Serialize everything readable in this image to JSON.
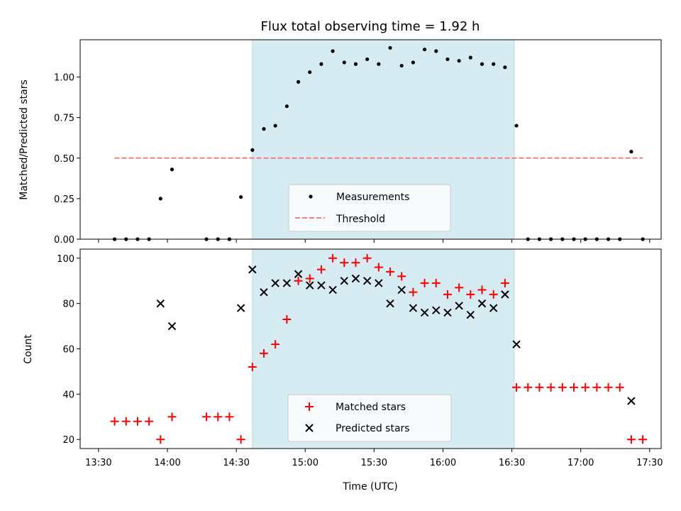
{
  "chart_data": [
    {
      "type": "scatter",
      "title": "Flux total observing time = 1.92 h",
      "xlabel": "",
      "ylabel": "Matched/Predicted stars",
      "ylim": [
        0,
        1.23
      ],
      "yticks": [
        "0.00",
        "0.25",
        "0.50",
        "0.75",
        "1.00"
      ],
      "ytick_values": [
        0,
        0.25,
        0.5,
        0.75,
        1.0
      ],
      "shaded_interval": [
        "14:37",
        "16:31"
      ],
      "shade_color": "#add8e6",
      "legend_position": "lower center",
      "series": [
        {
          "name": "Measurements",
          "marker": "dot",
          "color": "#000000",
          "x": [
            "13:37",
            "13:42",
            "13:47",
            "13:52",
            "13:57",
            "14:02",
            "14:17",
            "14:22",
            "14:27",
            "14:32",
            "14:37",
            "14:42",
            "14:47",
            "14:52",
            "14:57",
            "15:02",
            "15:07",
            "15:12",
            "15:17",
            "15:22",
            "15:27",
            "15:32",
            "15:37",
            "15:42",
            "15:47",
            "15:52",
            "15:57",
            "16:02",
            "16:07",
            "16:12",
            "16:17",
            "16:22",
            "16:27",
            "16:32",
            "16:37",
            "16:42",
            "16:47",
            "16:52",
            "16:57",
            "17:02",
            "17:07",
            "17:12",
            "17:17",
            "17:22",
            "17:27"
          ],
          "y": [
            0,
            0,
            0,
            0,
            0.25,
            0.43,
            0,
            0,
            0,
            0.26,
            0.55,
            0.68,
            0.7,
            0.82,
            0.97,
            1.03,
            1.08,
            1.16,
            1.09,
            1.08,
            1.11,
            1.08,
            1.18,
            1.07,
            1.09,
            1.17,
            1.16,
            1.11,
            1.1,
            1.12,
            1.08,
            1.08,
            1.06,
            0.7,
            0,
            0,
            0,
            0,
            0,
            0,
            0,
            0,
            0,
            0.54,
            0
          ]
        },
        {
          "name": "Threshold",
          "marker": "dashed-line",
          "color": "#f08080",
          "x": [
            "13:37",
            "17:27"
          ],
          "y": [
            0.5,
            0.5
          ]
        }
      ]
    },
    {
      "type": "scatter",
      "title": "",
      "xlabel": "Time (UTC)",
      "ylabel": "Count",
      "ylim": [
        16,
        104
      ],
      "yticks": [
        "20",
        "40",
        "60",
        "80",
        "100"
      ],
      "ytick_values": [
        20,
        40,
        60,
        80,
        100
      ],
      "xticks": [
        "13:30",
        "14:00",
        "14:30",
        "15:00",
        "15:30",
        "16:00",
        "16:30",
        "17:00",
        "17:30"
      ],
      "shaded_interval": [
        "14:37",
        "16:31"
      ],
      "shade_color": "#add8e6",
      "legend_position": "lower center",
      "series": [
        {
          "name": "Matched stars",
          "marker": "plus",
          "color": "#ff0000",
          "x": [
            "13:37",
            "13:42",
            "13:47",
            "13:52",
            "13:57",
            "14:02",
            "14:17",
            "14:22",
            "14:27",
            "14:32",
            "14:37",
            "14:42",
            "14:47",
            "14:52",
            "14:57",
            "15:02",
            "15:07",
            "15:12",
            "15:17",
            "15:22",
            "15:27",
            "15:32",
            "15:37",
            "15:42",
            "15:47",
            "15:52",
            "15:57",
            "16:02",
            "16:07",
            "16:12",
            "16:17",
            "16:22",
            "16:27",
            "16:32",
            "16:37",
            "16:42",
            "16:47",
            "16:52",
            "16:57",
            "17:02",
            "17:07",
            "17:12",
            "17:17",
            "17:22",
            "17:27"
          ],
          "y": [
            28,
            28,
            28,
            28,
            20,
            30,
            30,
            30,
            30,
            20,
            52,
            58,
            62,
            73,
            90,
            91,
            95,
            100,
            98,
            98,
            100,
            96,
            94,
            92,
            85,
            89,
            89,
            84,
            87,
            84,
            86,
            84,
            89,
            43,
            43,
            43,
            43,
            43,
            43,
            43,
            43,
            43,
            43,
            20,
            20
          ]
        },
        {
          "name": "Predicted stars",
          "marker": "x",
          "color": "#000000",
          "x": [
            "13:57",
            "14:02",
            "14:32",
            "14:37",
            "14:42",
            "14:47",
            "14:52",
            "14:57",
            "15:02",
            "15:07",
            "15:12",
            "15:17",
            "15:22",
            "15:27",
            "15:32",
            "15:37",
            "15:42",
            "15:47",
            "15:52",
            "15:57",
            "16:02",
            "16:07",
            "16:12",
            "16:17",
            "16:22",
            "16:27",
            "16:32",
            "17:22"
          ],
          "y": [
            80,
            70,
            78,
            95,
            85,
            89,
            89,
            93,
            88,
            88,
            86,
            90,
            91,
            90,
            89,
            80,
            86,
            78,
            76,
            77,
            76,
            79,
            75,
            80,
            78,
            84,
            62,
            37
          ]
        }
      ]
    }
  ]
}
